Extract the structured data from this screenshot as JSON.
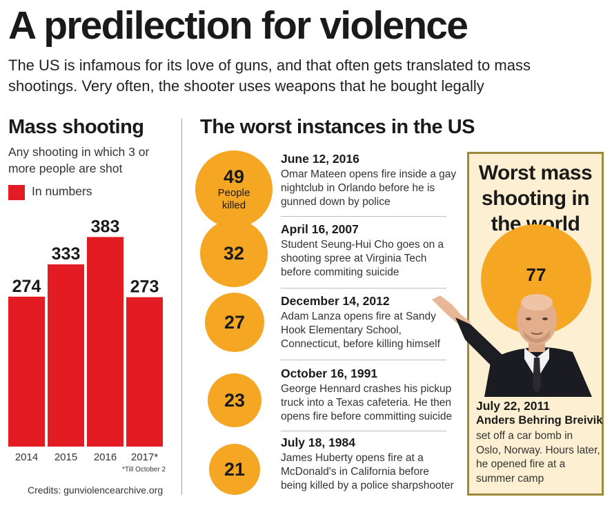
{
  "header": {
    "title": "A predilection for violence",
    "subtitle": "The US is infamous for its love of guns, and that often gets translated to mass shootings. Very often, the shooter uses weapons that he bought legally"
  },
  "mass_shooting": {
    "heading": "Mass shooting",
    "definition": "Any shooting in which 3 or more people are shot",
    "legend_label": "In numbers",
    "footnote": "*Till October 2",
    "credits": "Credits: gunviolencearchive.org"
  },
  "chart_data": {
    "type": "bar",
    "categories": [
      "2014",
      "2015",
      "2016",
      "2017*"
    ],
    "values": [
      274,
      333,
      383,
      273
    ],
    "value_labels": [
      "274",
      "333",
      "383",
      "273"
    ],
    "ylim": [
      0,
      410
    ],
    "color": "#e31b23"
  },
  "worst_us": {
    "heading": "The worst instances in the US",
    "events": [
      {
        "number": "49",
        "unit": "People killed",
        "date": "June 12, 2016",
        "description": "Omar Mateen opens fire inside a gay nightclub in Orlando before he is gunned down by police"
      },
      {
        "number": "32",
        "unit": "",
        "date": "April 16, 2007",
        "description": "Student Seung-Hui Cho goes on a shooting spree at Virginia Tech before commiting suicide"
      },
      {
        "number": "27",
        "unit": "",
        "date": "December 14, 2012",
        "description": "Adam Lanza opens fire at Sandy Hook Elementary School, Connecticut, before killing himself"
      },
      {
        "number": "23",
        "unit": "",
        "date": "October 16, 1991",
        "description": "George Hennard crashes his pickup truck into a Texas cafeteria. He then opens fire before committing suicide"
      },
      {
        "number": "21",
        "unit": "",
        "date": "July 18, 1984",
        "description": "James Huberty opens fire at a McDonald's in California before being killed by a police sharpshooter"
      }
    ]
  },
  "worst_world": {
    "heading": "Worst mass shooting in the world",
    "number": "77",
    "date": "July 22, 2011",
    "name": "Anders Behring Breivik",
    "description": "set off a car bomb in Oslo, Norway. Hours later, he opened fire at a summer camp"
  },
  "colors": {
    "bar": "#e31b23",
    "circle": "#f5a623",
    "box_fill": "#fdf0d2",
    "box_border": "#9c8a38"
  }
}
